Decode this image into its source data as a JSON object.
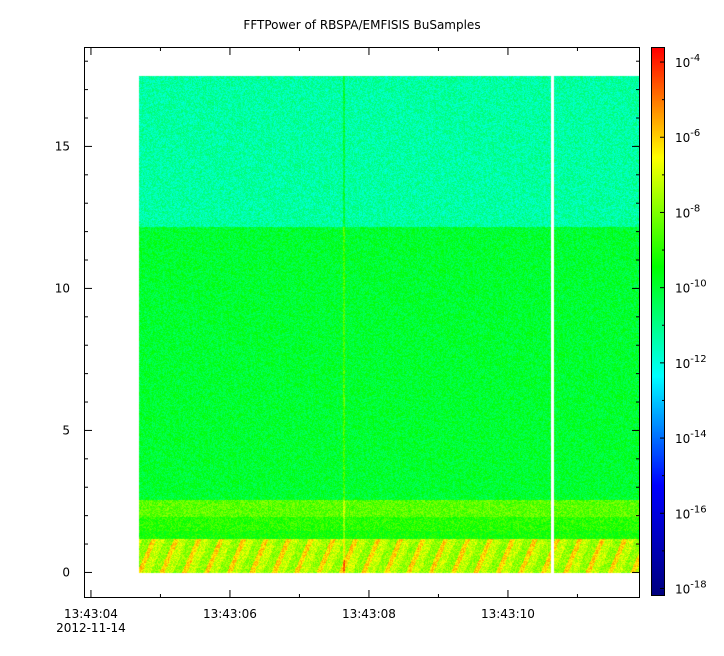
{
  "chart_data": {
    "type": "heatmap",
    "title": "FFTPower of RBSPA/EMFISIS  BuSamples",
    "xlabel": "",
    "ylabel": "",
    "x_ticks": [
      {
        "label": "13:43:04",
        "sublabel": "2012-11-14",
        "seconds": 0
      },
      {
        "label": "13:43:06",
        "sublabel": "",
        "seconds": 2
      },
      {
        "label": "13:43:08",
        "sublabel": "",
        "seconds": 4
      },
      {
        "label": "13:43:10",
        "sublabel": "",
        "seconds": 6
      }
    ],
    "x_range_seconds": [
      -0.1,
      7.9
    ],
    "data_x_range_seconds": [
      0.67,
      7.9
    ],
    "y_ticks": [
      "0",
      "5",
      "10",
      "15"
    ],
    "ylim": [
      -0.9,
      18.5
    ],
    "frequency_max": 17.5,
    "data_gaps_seconds": [
      6.63
    ],
    "spike_seconds": 3.63,
    "bands": [
      {
        "ymin": 12.2,
        "ymax": 17.5,
        "log10_power": -11.3
      },
      {
        "ymin": 2.6,
        "ymax": 12.2,
        "log10_power": -10.0
      },
      {
        "ymin": 2.0,
        "ymax": 2.6,
        "log10_power": -8.4
      },
      {
        "ymin": 1.5,
        "ymax": 2.0,
        "log10_power": -9.0
      },
      {
        "ymin": 1.2,
        "ymax": 1.5,
        "log10_power": -9.3
      },
      {
        "ymin": 0.0,
        "ymax": 1.2,
        "log10_power": -7.2
      }
    ],
    "colorbar": {
      "scale": "log",
      "range": [
        -18.2,
        -3.6
      ],
      "tick_exponents": [
        -18,
        -16,
        -14,
        -12,
        -10,
        -8,
        -6,
        -4
      ],
      "tick_labels": [
        "10-18",
        "10-16",
        "10-14",
        "10-12",
        "10-10",
        "10-8",
        "10-6",
        "10-4"
      ],
      "colormap": [
        "#000080",
        "#0000ff",
        "#00ffff",
        "#00ff00",
        "#ffff00",
        "#ff0000"
      ]
    }
  }
}
